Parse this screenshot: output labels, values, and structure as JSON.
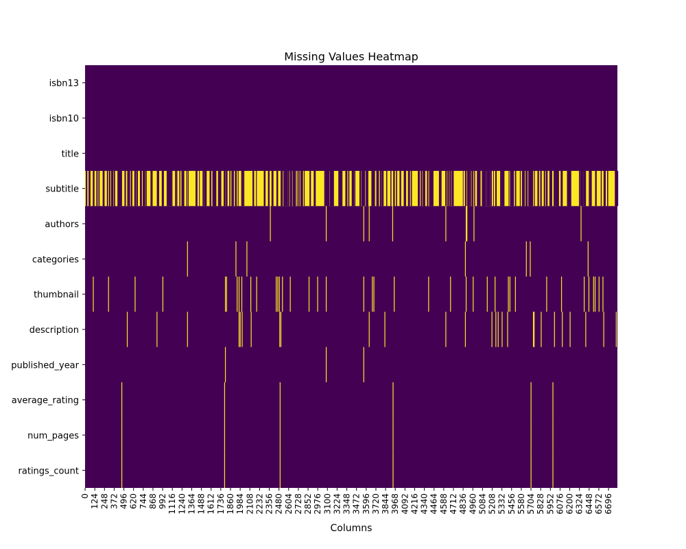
{
  "chart_data": {
    "type": "heatmap",
    "title": "Missing Values Heatmap",
    "xlabel": "Columns",
    "ylabel": "",
    "n_rows": 6810,
    "colors": {
      "present": "#440154",
      "missing": "#fde725"
    },
    "columns": [
      "isbn13",
      "isbn10",
      "title",
      "subtitle",
      "authors",
      "categories",
      "thumbnail",
      "description",
      "published_year",
      "average_rating",
      "num_pages",
      "ratings_count"
    ],
    "x_tick_labels": [
      "0",
      "124",
      "248",
      "372",
      "496",
      "620",
      "744",
      "868",
      "992",
      "1116",
      "1240",
      "1364",
      "1488",
      "1612",
      "1736",
      "1860",
      "1984",
      "2108",
      "2232",
      "2356",
      "2480",
      "2604",
      "2728",
      "2852",
      "2976",
      "3100",
      "3224",
      "3348",
      "3472",
      "3596",
      "3720",
      "3844",
      "3968",
      "4092",
      "4216",
      "4340",
      "4464",
      "4588",
      "4712",
      "4836",
      "4960",
      "5084",
      "5208",
      "5332",
      "5456",
      "5580",
      "5704",
      "5828",
      "5952",
      "6076",
      "6200",
      "6324",
      "6448",
      "6572",
      "6696"
    ],
    "missing_mask_description": "yellow = missing value",
    "missing": {
      "isbn13": [],
      "isbn10": [],
      "title": [],
      "subtitle": "dense",
      "authors": [
        2365,
        3080,
        3560,
        3630,
        3930,
        4610,
        4870,
        4880,
        4970,
        6340
      ],
      "categories": [
        1305,
        1925,
        2065,
        4860,
        5640,
        5690,
        6430
      ],
      "thumbnail": [
        100,
        295,
        635,
        990,
        1790,
        1805,
        1940,
        1965,
        2000,
        2115,
        2190,
        2440,
        2460,
        2480,
        2520,
        2620,
        2860,
        2970,
        3080,
        3560,
        3670,
        3690,
        3950,
        4390,
        4670,
        4870,
        4960,
        5140,
        5240,
        5410,
        5430,
        5500,
        5900,
        6090,
        6380,
        6440,
        6500,
        6520,
        6570,
        6620
      ],
      "description": [
        535,
        915,
        1305,
        1965,
        1980,
        2005,
        2120,
        2485,
        2500,
        3630,
        3830,
        4610,
        4860,
        5200,
        5250,
        5280,
        5330,
        5400,
        5730,
        5740,
        5830,
        6000,
        6100,
        6200,
        6400,
        6630,
        6790
      ],
      "published_year": [
        1790,
        3080,
        3560
      ],
      "average_rating": [
        465,
        1780,
        2490,
        3935,
        5700,
        5980
      ],
      "num_pages": [
        465,
        1780,
        2490,
        3935,
        5700,
        5980
      ],
      "ratings_count": [
        465,
        1780,
        2490,
        3935,
        5700,
        5980
      ]
    }
  }
}
